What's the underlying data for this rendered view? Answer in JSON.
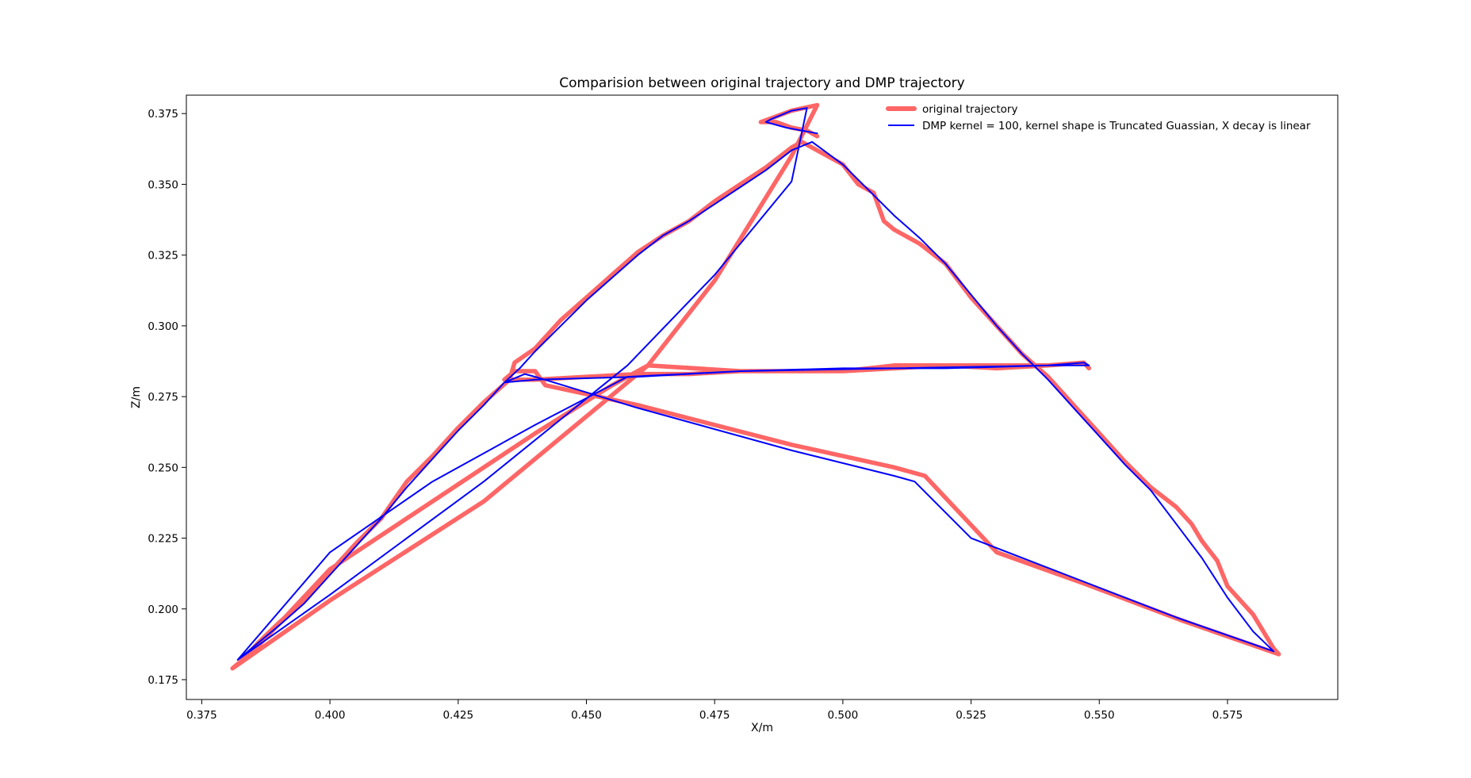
{
  "chart_data": {
    "type": "line",
    "title": "Comparision between original trajectory and DMP trajectory",
    "xlabel": "X/m",
    "ylabel": "Z/m",
    "xlim": [
      0.372,
      0.5965
    ],
    "ylim": [
      0.168,
      0.3815
    ],
    "x_ticks": [
      0.375,
      0.4,
      0.425,
      0.45,
      0.475,
      0.5,
      0.525,
      0.55,
      0.575
    ],
    "y_ticks": [
      0.175,
      0.2,
      0.225,
      0.25,
      0.275,
      0.3,
      0.325,
      0.35,
      0.375
    ],
    "x_tick_labels": [
      "0.375",
      "0.400",
      "0.425",
      "0.450",
      "0.475",
      "0.500",
      "0.525",
      "0.550",
      "0.575"
    ],
    "y_tick_labels": [
      "0.175",
      "0.200",
      "0.225",
      "0.250",
      "0.275",
      "0.300",
      "0.325",
      "0.350",
      "0.375"
    ],
    "grid": false,
    "legend_position": "top-right",
    "series": [
      {
        "name": "original trajectory",
        "color": "#ff6666",
        "points": [
          [
            0.381,
            0.179
          ],
          [
            0.383,
            0.182
          ],
          [
            0.386,
            0.188
          ],
          [
            0.39,
            0.195
          ],
          [
            0.395,
            0.203
          ],
          [
            0.4,
            0.213
          ],
          [
            0.405,
            0.223
          ],
          [
            0.41,
            0.232
          ],
          [
            0.415,
            0.245
          ],
          [
            0.42,
            0.254
          ],
          [
            0.425,
            0.264
          ],
          [
            0.43,
            0.273
          ],
          [
            0.435,
            0.281
          ],
          [
            0.436,
            0.287
          ],
          [
            0.44,
            0.292
          ],
          [
            0.445,
            0.302
          ],
          [
            0.45,
            0.31
          ],
          [
            0.455,
            0.318
          ],
          [
            0.46,
            0.326
          ],
          [
            0.465,
            0.332
          ],
          [
            0.47,
            0.337
          ],
          [
            0.475,
            0.344
          ],
          [
            0.48,
            0.35
          ],
          [
            0.485,
            0.356
          ],
          [
            0.49,
            0.363
          ],
          [
            0.492,
            0.365
          ],
          [
            0.495,
            0.362
          ],
          [
            0.5,
            0.357
          ],
          [
            0.503,
            0.35
          ],
          [
            0.506,
            0.347
          ],
          [
            0.508,
            0.337
          ],
          [
            0.51,
            0.334
          ],
          [
            0.515,
            0.329
          ],
          [
            0.52,
            0.322
          ],
          [
            0.525,
            0.31
          ],
          [
            0.53,
            0.3
          ],
          [
            0.535,
            0.29
          ],
          [
            0.54,
            0.282
          ],
          [
            0.545,
            0.272
          ],
          [
            0.55,
            0.262
          ],
          [
            0.555,
            0.252
          ],
          [
            0.56,
            0.243
          ],
          [
            0.565,
            0.236
          ],
          [
            0.568,
            0.23
          ],
          [
            0.57,
            0.224
          ],
          [
            0.573,
            0.217
          ],
          [
            0.575,
            0.208
          ],
          [
            0.58,
            0.198
          ],
          [
            0.584,
            0.186
          ],
          [
            0.585,
            0.184
          ],
          [
            0.566,
            0.196
          ],
          [
            0.547,
            0.209
          ],
          [
            0.53,
            0.22
          ],
          [
            0.516,
            0.247
          ],
          [
            0.51,
            0.25
          ],
          [
            0.49,
            0.258
          ],
          [
            0.46,
            0.272
          ],
          [
            0.442,
            0.279
          ],
          [
            0.44,
            0.284
          ],
          [
            0.436,
            0.284
          ],
          [
            0.434,
            0.281
          ],
          [
            0.44,
            0.281
          ],
          [
            0.45,
            0.282
          ],
          [
            0.46,
            0.283
          ],
          [
            0.47,
            0.283
          ],
          [
            0.48,
            0.284
          ],
          [
            0.49,
            0.284
          ],
          [
            0.5,
            0.284
          ],
          [
            0.51,
            0.286
          ],
          [
            0.52,
            0.286
          ],
          [
            0.53,
            0.285
          ],
          [
            0.54,
            0.286
          ],
          [
            0.547,
            0.287
          ],
          [
            0.548,
            0.285
          ],
          [
            0.547,
            0.287
          ],
          [
            0.54,
            0.286
          ],
          [
            0.52,
            0.286
          ],
          [
            0.5,
            0.284
          ],
          [
            0.48,
            0.284
          ],
          [
            0.462,
            0.286
          ],
          [
            0.455,
            0.279
          ],
          [
            0.44,
            0.262
          ],
          [
            0.42,
            0.238
          ],
          [
            0.4,
            0.214
          ],
          [
            0.385,
            0.185
          ],
          [
            0.381,
            0.179
          ],
          [
            0.4,
            0.203
          ],
          [
            0.43,
            0.238
          ],
          [
            0.462,
            0.286
          ],
          [
            0.475,
            0.316
          ],
          [
            0.49,
            0.36
          ],
          [
            0.495,
            0.378
          ],
          [
            0.49,
            0.376
          ],
          [
            0.487,
            0.374
          ],
          [
            0.484,
            0.372
          ],
          [
            0.487,
            0.372
          ],
          [
            0.49,
            0.37
          ],
          [
            0.493,
            0.369
          ],
          [
            0.495,
            0.367
          ]
        ]
      },
      {
        "name": "DMP kernel = 100, kernel shape is Truncated Guassian, X decay is linear",
        "color": "#0000ff",
        "points": [
          [
            0.382,
            0.182
          ],
          [
            0.386,
            0.188
          ],
          [
            0.39,
            0.194
          ],
          [
            0.395,
            0.202
          ],
          [
            0.4,
            0.212
          ],
          [
            0.405,
            0.222
          ],
          [
            0.41,
            0.232
          ],
          [
            0.415,
            0.243
          ],
          [
            0.42,
            0.253
          ],
          [
            0.425,
            0.263
          ],
          [
            0.43,
            0.272
          ],
          [
            0.434,
            0.28
          ],
          [
            0.437,
            0.285
          ],
          [
            0.44,
            0.291
          ],
          [
            0.445,
            0.3
          ],
          [
            0.45,
            0.309
          ],
          [
            0.455,
            0.317
          ],
          [
            0.46,
            0.325
          ],
          [
            0.465,
            0.332
          ],
          [
            0.47,
            0.337
          ],
          [
            0.475,
            0.343
          ],
          [
            0.48,
            0.349
          ],
          [
            0.485,
            0.355
          ],
          [
            0.49,
            0.362
          ],
          [
            0.494,
            0.365
          ],
          [
            0.5,
            0.357
          ],
          [
            0.505,
            0.348
          ],
          [
            0.51,
            0.339
          ],
          [
            0.515,
            0.331
          ],
          [
            0.52,
            0.322
          ],
          [
            0.525,
            0.311
          ],
          [
            0.53,
            0.3
          ],
          [
            0.535,
            0.29
          ],
          [
            0.54,
            0.281
          ],
          [
            0.545,
            0.271
          ],
          [
            0.55,
            0.261
          ],
          [
            0.555,
            0.251
          ],
          [
            0.56,
            0.242
          ],
          [
            0.565,
            0.23
          ],
          [
            0.57,
            0.218
          ],
          [
            0.575,
            0.204
          ],
          [
            0.58,
            0.192
          ],
          [
            0.584,
            0.185
          ],
          [
            0.565,
            0.197
          ],
          [
            0.545,
            0.211
          ],
          [
            0.525,
            0.225
          ],
          [
            0.514,
            0.245
          ],
          [
            0.51,
            0.247
          ],
          [
            0.49,
            0.256
          ],
          [
            0.46,
            0.271
          ],
          [
            0.44,
            0.282
          ],
          [
            0.438,
            0.283
          ],
          [
            0.434,
            0.28
          ],
          [
            0.44,
            0.281
          ],
          [
            0.46,
            0.282
          ],
          [
            0.48,
            0.284
          ],
          [
            0.5,
            0.285
          ],
          [
            0.52,
            0.285
          ],
          [
            0.54,
            0.286
          ],
          [
            0.547,
            0.287
          ],
          [
            0.548,
            0.286
          ],
          [
            0.54,
            0.286
          ],
          [
            0.51,
            0.285
          ],
          [
            0.48,
            0.284
          ],
          [
            0.458,
            0.282
          ],
          [
            0.44,
            0.265
          ],
          [
            0.42,
            0.245
          ],
          [
            0.4,
            0.22
          ],
          [
            0.382,
            0.182
          ],
          [
            0.4,
            0.205
          ],
          [
            0.43,
            0.245
          ],
          [
            0.458,
            0.286
          ],
          [
            0.475,
            0.318
          ],
          [
            0.49,
            0.351
          ],
          [
            0.493,
            0.377
          ],
          [
            0.49,
            0.376
          ],
          [
            0.486,
            0.373
          ],
          [
            0.485,
            0.372
          ],
          [
            0.489,
            0.37
          ],
          [
            0.492,
            0.369
          ],
          [
            0.495,
            0.368
          ]
        ]
      }
    ]
  }
}
